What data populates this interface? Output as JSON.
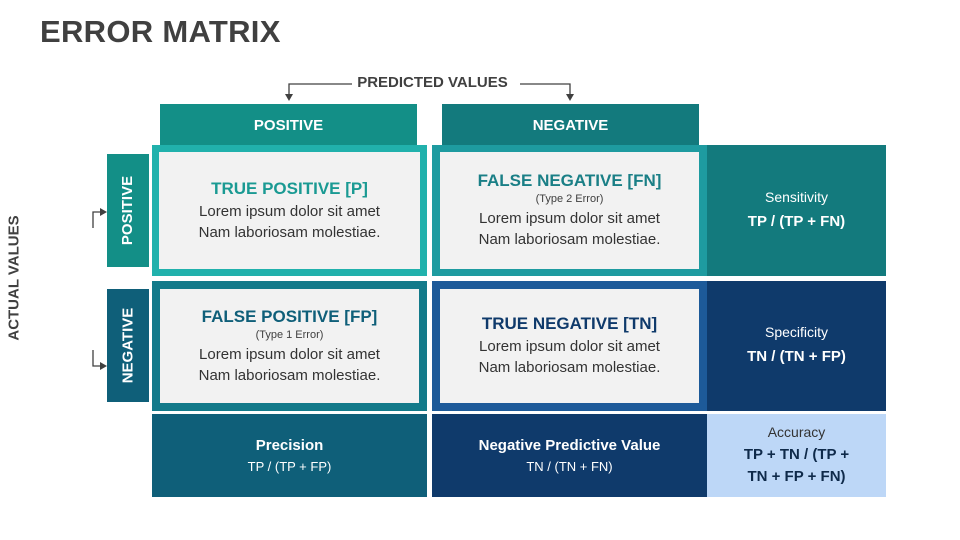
{
  "title": "ERROR MATRIX",
  "predicted_label": "PREDICTED VALUES",
  "actual_label": "ACTUAL VALUES",
  "columns": {
    "positive": "POSITIVE",
    "negative": "NEGATIVE"
  },
  "rows": {
    "positive": "POSITIVE",
    "negative": "NEGATIVE"
  },
  "cells": {
    "tp": {
      "title": "TRUE POSITIVE [P]",
      "subtitle": "",
      "line1": "Lorem ipsum dolor sit amet",
      "line2": "Nam laboriosam molestiae."
    },
    "fn": {
      "title": "FALSE NEGATIVE [FN]",
      "subtitle": "(Type 2 Error)",
      "line1": "Lorem ipsum dolor sit amet",
      "line2": "Nam laboriosam molestiae."
    },
    "fp": {
      "title": "FALSE POSITIVE [FP]",
      "subtitle": "(Type 1 Error)",
      "line1": "Lorem ipsum dolor sit amet",
      "line2": "Nam laboriosam molestiae."
    },
    "tn": {
      "title": "TRUE NEGATIVE [TN]",
      "subtitle": "",
      "line1": "Lorem ipsum dolor sit amet",
      "line2": "Nam laboriosam molestiae."
    }
  },
  "metrics": {
    "sensitivity": {
      "name": "Sensitivity",
      "formula": "TP / (TP + FN)"
    },
    "specificity": {
      "name": "Specificity",
      "formula": "TN / (TN + FP)"
    },
    "precision": {
      "name": "Precision",
      "formula": "TP / (TP + FP)"
    },
    "npv": {
      "name": "Negative Predictive Value",
      "formula": "TN / (TN + FN)"
    },
    "accuracy": {
      "name": "Accuracy",
      "formula_line1": "TP + TN / (TP +",
      "formula_line2": "TN + FP + FN)"
    }
  },
  "colors": {
    "teal_light": "#138f87",
    "teal": "#137a7d",
    "teal_bright": "#21b1ac",
    "petrol": "#0f5f79",
    "navy": "#0f3a6b",
    "blue": "#1d5a99",
    "accuracy_bg": "#bdd7f7",
    "tp_title": "#1a9a93",
    "fn_title": "#1a7f86",
    "fp_title": "#0f5f79",
    "tn_title": "#0f3a6b"
  }
}
